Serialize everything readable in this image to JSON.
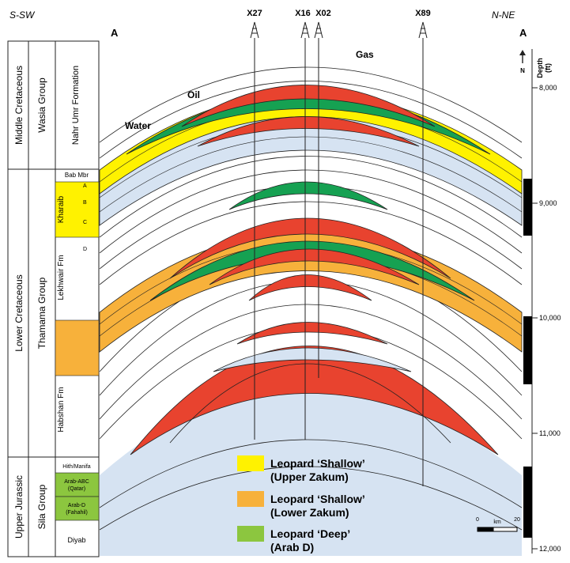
{
  "cross_section": {
    "left_end": {
      "direction": "S-SW",
      "label": "A"
    },
    "right_end": {
      "direction": "N-NE",
      "label": "A"
    },
    "wells": [
      {
        "name": "X27",
        "icon": "derrick-icon"
      },
      {
        "name": "X16",
        "icon": "derrick-icon"
      },
      {
        "name": "X02",
        "icon": "derrick-icon"
      },
      {
        "name": "X89",
        "icon": "derrick-icon"
      }
    ],
    "fluids": {
      "gas": "Gas",
      "oil": "Oil",
      "water": "Water"
    },
    "north_arrow": "N",
    "depth_axis": {
      "title": "Depth",
      "unit": "(ft)",
      "ticks": [
        "8,000",
        "9,000",
        "10,000",
        "11,000",
        "12,000"
      ]
    },
    "scale_bar": {
      "start": "0",
      "unit": "km",
      "end": "20"
    }
  },
  "stratigraphy": {
    "periods": [
      {
        "name": "Middle Cretaceous"
      },
      {
        "name": "Lower Cretaceous"
      },
      {
        "name": "Upper Jurassic"
      }
    ],
    "groups": [
      {
        "name": "Wasia Group"
      },
      {
        "name": "Thamama Group"
      },
      {
        "name": "Sila Group"
      }
    ],
    "formations": {
      "nahr_umr": "Nahr Umr Formation",
      "bab": "Bab Mbr",
      "kharaib": "Kharaib",
      "kharaib_units": [
        "A",
        "B",
        "C"
      ],
      "lekhwair_unit": "D",
      "lekhwair": "Lekhwair Fm",
      "habshan": "Habshan Fm",
      "hith": "Hith/Manifa",
      "arab_abc": [
        "Arab-ABC",
        "(Qatar)"
      ],
      "arab_d": [
        "Arab-D",
        "(Fahahil)"
      ],
      "diyab": "Diyab"
    }
  },
  "legend": [
    {
      "line1": "Leopard ‘Shallow’",
      "line2": "(Upper Zakum)",
      "color": "#fff200"
    },
    {
      "line1": "Leopard ‘Shallow’",
      "line2": "(Lower Zakum)",
      "color": "#f7b13b"
    },
    {
      "line1": "Leopard ‘Deep’",
      "line2": "(Arab D)",
      "color": "#8cc63f"
    }
  ],
  "colors": {
    "gas": "#e8432f",
    "oil": "#16a152",
    "water": "#d6e3f2",
    "upper_zakum": "#fff200",
    "lower_zakum": "#f7b13b",
    "arab_d": "#8cc63f"
  }
}
